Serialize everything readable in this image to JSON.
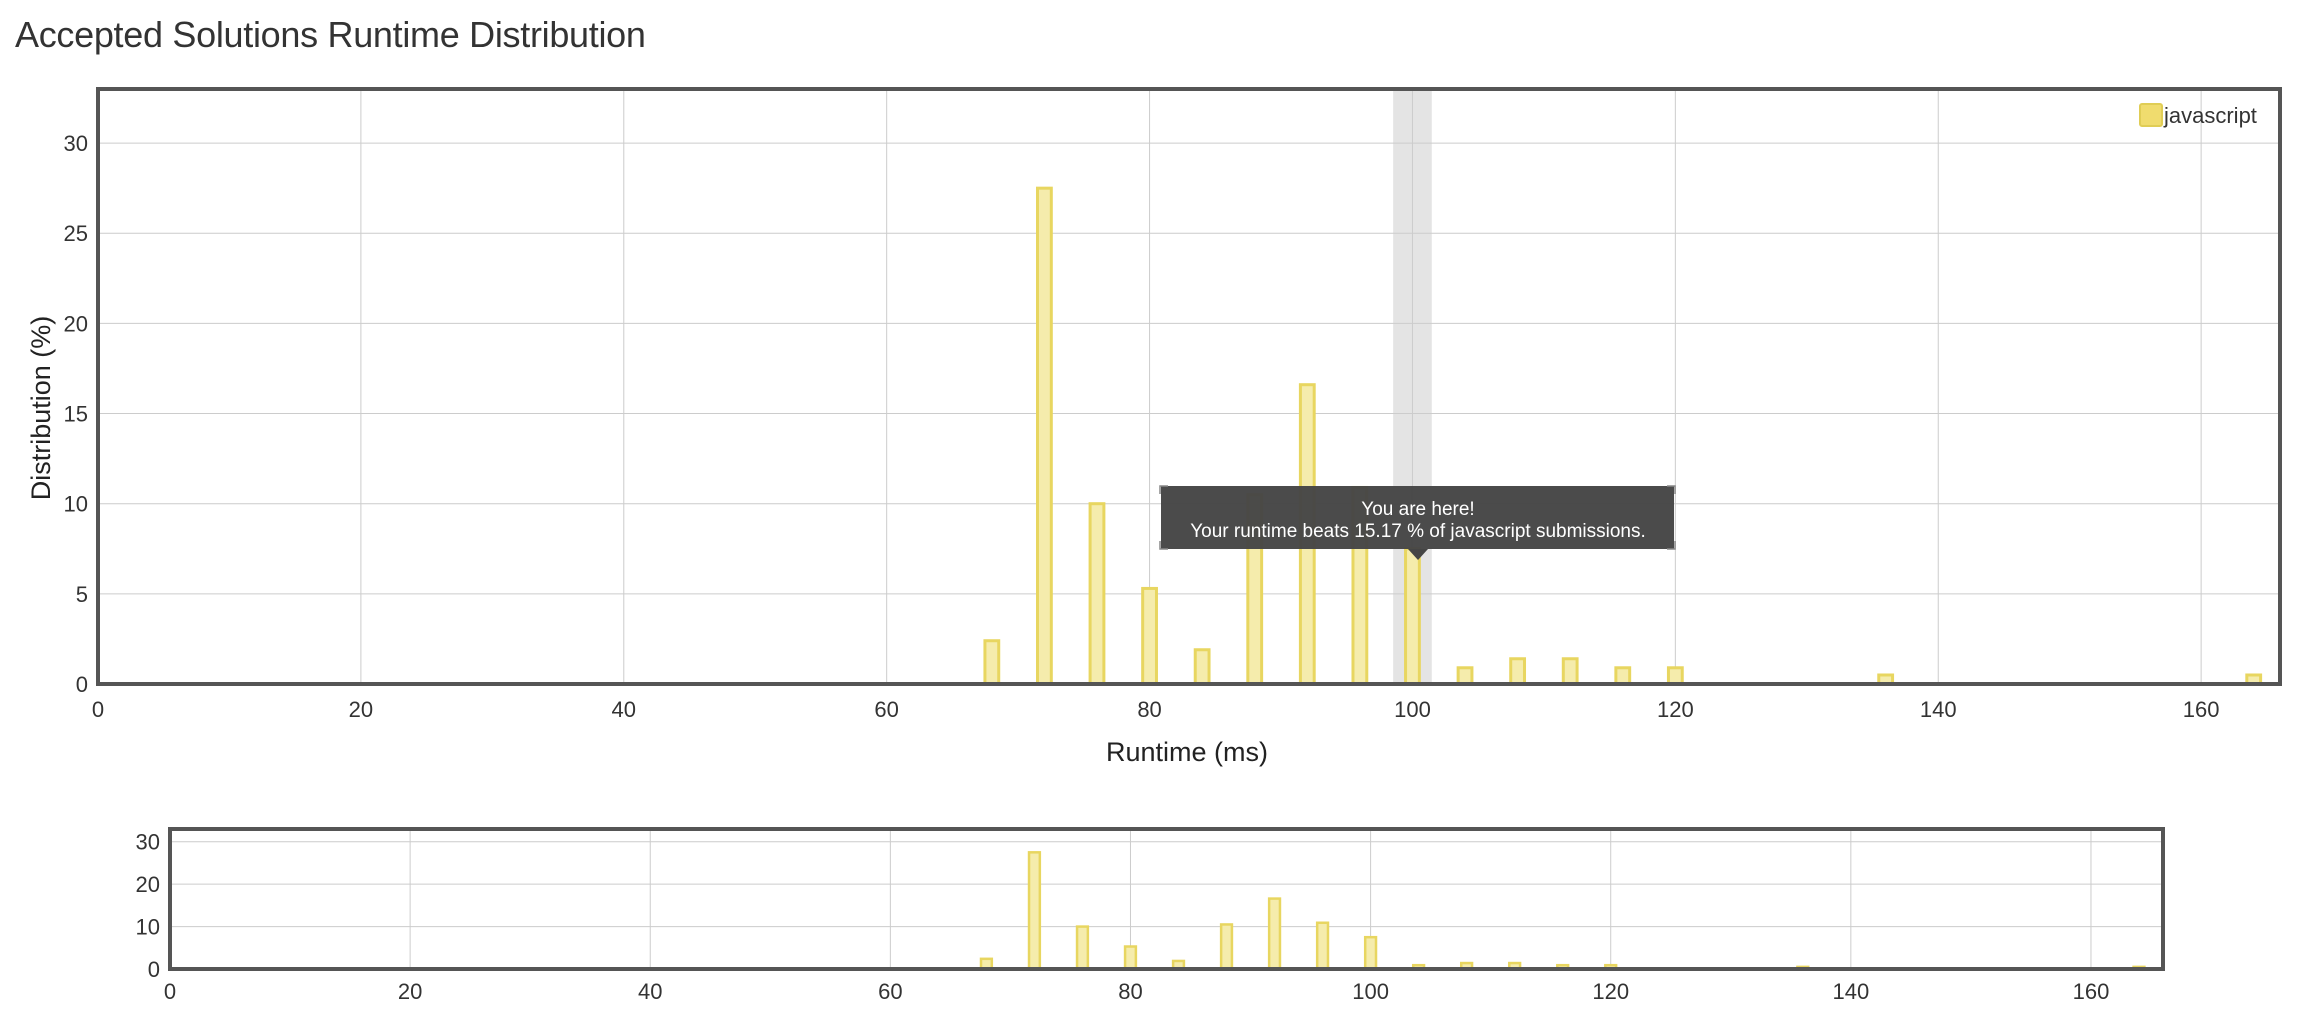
{
  "page": {
    "title": "Accepted Solutions Runtime Distribution"
  },
  "colors": {
    "bar_fill": "#f5ecac",
    "bar_stroke": "#e8d660",
    "grid": "#cccccc",
    "frame": "#555555",
    "highlight": "#e4e4e4",
    "tooltip_bg": "#454545",
    "text": "#333333"
  },
  "tooltip": {
    "line1": "You are here!",
    "line2": "Your runtime beats 15.17 % of javascript submissions."
  },
  "chart_data": [
    {
      "type": "bar",
      "role": "main",
      "xlabel": "Runtime (ms)",
      "ylabel": "Distribution (%)",
      "xlim": [
        0,
        166
      ],
      "ylim": [
        0,
        33
      ],
      "xticks": [
        0,
        20,
        40,
        60,
        80,
        100,
        120,
        140,
        160
      ],
      "yticks": [
        0,
        5,
        10,
        15,
        20,
        25,
        30
      ],
      "grid": true,
      "legend": {
        "position": "top-right",
        "entries": [
          "javascript"
        ]
      },
      "highlight_x": 100,
      "series": [
        {
          "name": "javascript",
          "x": [
            68,
            72,
            76,
            80,
            84,
            88,
            92,
            96,
            100,
            104,
            108,
            112,
            116,
            120,
            136,
            164
          ],
          "values": [
            2.4,
            27.5,
            10.0,
            5.3,
            1.9,
            10.5,
            16.6,
            10.9,
            7.5,
            0.9,
            1.4,
            1.4,
            0.9,
            0.9,
            0.5,
            0.5
          ]
        }
      ]
    },
    {
      "type": "bar",
      "role": "navigator",
      "xlim": [
        0,
        166
      ],
      "ylim": [
        0,
        33
      ],
      "xticks": [
        0,
        20,
        40,
        60,
        80,
        100,
        120,
        140,
        160
      ],
      "yticks": [
        0,
        10,
        20,
        30
      ],
      "grid": true,
      "series": [
        {
          "name": "javascript",
          "x": [
            68,
            72,
            76,
            80,
            84,
            88,
            92,
            96,
            100,
            104,
            108,
            112,
            116,
            120,
            136,
            164
          ],
          "values": [
            2.4,
            27.5,
            10.0,
            5.3,
            1.9,
            10.5,
            16.6,
            10.9,
            7.5,
            0.9,
            1.4,
            1.4,
            0.9,
            0.9,
            0.5,
            0.5
          ]
        }
      ]
    }
  ]
}
